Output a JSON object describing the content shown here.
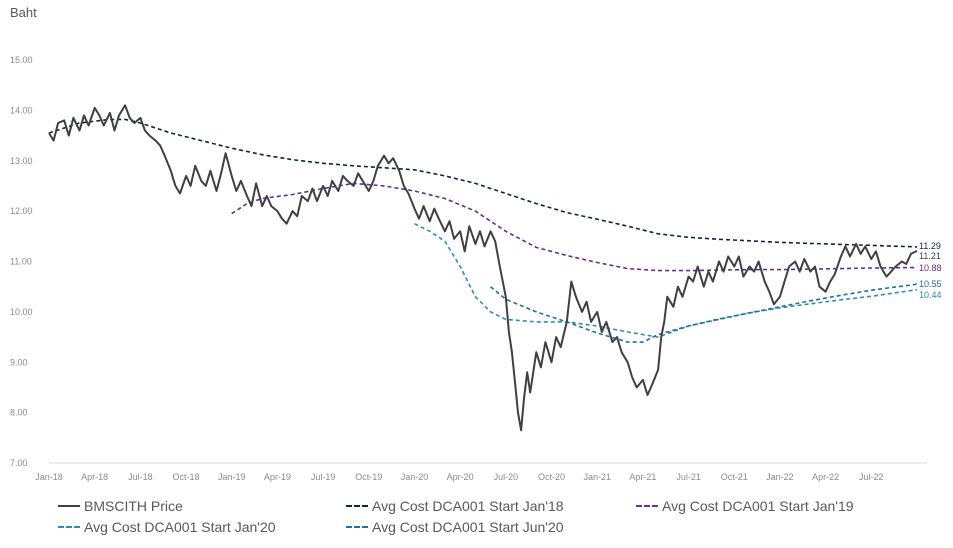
{
  "chart_data": {
    "type": "line",
    "ylabel": "Baht",
    "ylim": [
      7.0,
      15.0
    ],
    "y_ticks": [
      "15.00",
      "14.00",
      "13.00",
      "12.00",
      "11.00",
      "10.00",
      "9.00",
      "8.00",
      "7.00"
    ],
    "x_ticks": [
      "Jan-18",
      "Apr-18",
      "Jul-18",
      "Oct-18",
      "Jan-19",
      "Apr-19",
      "Jul-19",
      "Oct-19",
      "Jan-20",
      "Apr-20",
      "Jul-20",
      "Oct-20",
      "Jan-21",
      "Apr-21",
      "Jul-21",
      "Oct-21",
      "Jan-22",
      "Apr-22",
      "Jul-22"
    ],
    "x_range_months": [
      0,
      57
    ],
    "series": [
      {
        "name": "BMSCITH Price",
        "color": "#404040",
        "dash": "solid",
        "end_label": "11.21",
        "points": [
          [
            0,
            13.55
          ],
          [
            0.3,
            13.4
          ],
          [
            0.6,
            13.75
          ],
          [
            1,
            13.8
          ],
          [
            1.3,
            13.5
          ],
          [
            1.6,
            13.85
          ],
          [
            2,
            13.6
          ],
          [
            2.3,
            13.9
          ],
          [
            2.6,
            13.7
          ],
          [
            3,
            14.05
          ],
          [
            3.3,
            13.9
          ],
          [
            3.6,
            13.7
          ],
          [
            4,
            13.95
          ],
          [
            4.3,
            13.6
          ],
          [
            4.6,
            13.9
          ],
          [
            5,
            14.1
          ],
          [
            5.3,
            13.85
          ],
          [
            5.6,
            13.75
          ],
          [
            6,
            13.85
          ],
          [
            6.3,
            13.6
          ],
          [
            6.6,
            13.5
          ],
          [
            7,
            13.4
          ],
          [
            7.3,
            13.3
          ],
          [
            7.6,
            13.1
          ],
          [
            8,
            12.8
          ],
          [
            8.3,
            12.5
          ],
          [
            8.6,
            12.35
          ],
          [
            9,
            12.7
          ],
          [
            9.3,
            12.5
          ],
          [
            9.6,
            12.9
          ],
          [
            10,
            12.6
          ],
          [
            10.3,
            12.5
          ],
          [
            10.6,
            12.8
          ],
          [
            11,
            12.4
          ],
          [
            11.3,
            12.75
          ],
          [
            11.6,
            13.15
          ],
          [
            12,
            12.7
          ],
          [
            12.3,
            12.4
          ],
          [
            12.6,
            12.6
          ],
          [
            13,
            12.3
          ],
          [
            13.3,
            12.1
          ],
          [
            13.6,
            12.55
          ],
          [
            14,
            12.1
          ],
          [
            14.3,
            12.3
          ],
          [
            14.6,
            12.1
          ],
          [
            15,
            12.0
          ],
          [
            15.3,
            11.85
          ],
          [
            15.6,
            11.75
          ],
          [
            16,
            12.0
          ],
          [
            16.3,
            11.9
          ],
          [
            16.6,
            12.3
          ],
          [
            17,
            12.2
          ],
          [
            17.3,
            12.45
          ],
          [
            17.6,
            12.2
          ],
          [
            18,
            12.5
          ],
          [
            18.3,
            12.3
          ],
          [
            18.6,
            12.6
          ],
          [
            19,
            12.4
          ],
          [
            19.3,
            12.7
          ],
          [
            19.6,
            12.6
          ],
          [
            20,
            12.5
          ],
          [
            20.3,
            12.75
          ],
          [
            20.6,
            12.6
          ],
          [
            21,
            12.4
          ],
          [
            21.3,
            12.6
          ],
          [
            21.6,
            12.9
          ],
          [
            22,
            13.1
          ],
          [
            22.3,
            12.95
          ],
          [
            22.6,
            13.05
          ],
          [
            23,
            12.8
          ],
          [
            23.3,
            12.5
          ],
          [
            23.6,
            12.35
          ],
          [
            24,
            12.05
          ],
          [
            24.3,
            11.85
          ],
          [
            24.6,
            12.1
          ],
          [
            25,
            11.8
          ],
          [
            25.3,
            12.05
          ],
          [
            25.6,
            11.85
          ],
          [
            26,
            11.6
          ],
          [
            26.3,
            11.8
          ],
          [
            26.6,
            11.45
          ],
          [
            27,
            11.6
          ],
          [
            27.3,
            11.2
          ],
          [
            27.6,
            11.7
          ],
          [
            28,
            11.35
          ],
          [
            28.3,
            11.6
          ],
          [
            28.6,
            11.3
          ],
          [
            29,
            11.6
          ],
          [
            29.3,
            11.4
          ],
          [
            29.6,
            10.9
          ],
          [
            30,
            10.3
          ],
          [
            30.2,
            9.6
          ],
          [
            30.4,
            9.2
          ],
          [
            30.6,
            8.6
          ],
          [
            30.8,
            8.0
          ],
          [
            31,
            7.65
          ],
          [
            31.2,
            8.3
          ],
          [
            31.4,
            8.8
          ],
          [
            31.6,
            8.4
          ],
          [
            32,
            9.2
          ],
          [
            32.3,
            8.9
          ],
          [
            32.6,
            9.4
          ],
          [
            33,
            9.0
          ],
          [
            33.3,
            9.5
          ],
          [
            33.6,
            9.3
          ],
          [
            34,
            9.8
          ],
          [
            34.3,
            10.6
          ],
          [
            34.6,
            10.3
          ],
          [
            35,
            10.0
          ],
          [
            35.3,
            10.2
          ],
          [
            35.6,
            9.8
          ],
          [
            36,
            10.0
          ],
          [
            36.3,
            9.6
          ],
          [
            36.6,
            9.8
          ],
          [
            37,
            9.4
          ],
          [
            37.3,
            9.5
          ],
          [
            37.6,
            9.2
          ],
          [
            38,
            9.0
          ],
          [
            38.3,
            8.7
          ],
          [
            38.6,
            8.5
          ],
          [
            39,
            8.65
          ],
          [
            39.3,
            8.35
          ],
          [
            39.6,
            8.55
          ],
          [
            40,
            8.85
          ],
          [
            40.2,
            9.5
          ],
          [
            40.4,
            9.8
          ],
          [
            40.6,
            10.3
          ],
          [
            41,
            10.1
          ],
          [
            41.3,
            10.5
          ],
          [
            41.6,
            10.3
          ],
          [
            42,
            10.7
          ],
          [
            42.3,
            10.6
          ],
          [
            42.6,
            10.9
          ],
          [
            43,
            10.5
          ],
          [
            43.3,
            10.8
          ],
          [
            43.6,
            10.6
          ],
          [
            44,
            11.0
          ],
          [
            44.3,
            10.8
          ],
          [
            44.6,
            11.1
          ],
          [
            45,
            10.9
          ],
          [
            45.3,
            11.1
          ],
          [
            45.6,
            10.7
          ],
          [
            46,
            10.9
          ],
          [
            46.3,
            10.8
          ],
          [
            46.6,
            11.0
          ],
          [
            47,
            10.6
          ],
          [
            47.3,
            10.4
          ],
          [
            47.6,
            10.15
          ],
          [
            48,
            10.3
          ],
          [
            48.3,
            10.6
          ],
          [
            48.6,
            10.9
          ],
          [
            49,
            11.0
          ],
          [
            49.3,
            10.8
          ],
          [
            49.6,
            11.05
          ],
          [
            50,
            10.8
          ],
          [
            50.3,
            10.9
          ],
          [
            50.6,
            10.5
          ],
          [
            51,
            10.4
          ],
          [
            51.3,
            10.6
          ],
          [
            51.6,
            10.75
          ],
          [
            52,
            11.1
          ],
          [
            52.3,
            11.3
          ],
          [
            52.6,
            11.1
          ],
          [
            53,
            11.35
          ],
          [
            53.3,
            11.15
          ],
          [
            53.6,
            11.3
          ],
          [
            54,
            11.05
          ],
          [
            54.3,
            11.2
          ],
          [
            54.6,
            10.9
          ],
          [
            55,
            10.7
          ],
          [
            55.3,
            10.8
          ],
          [
            55.6,
            10.9
          ],
          [
            56,
            11.0
          ],
          [
            56.3,
            10.95
          ],
          [
            56.6,
            11.15
          ],
          [
            57,
            11.21
          ]
        ]
      },
      {
        "name": "Avg Cost DCA001 Start Jan'18",
        "color": "#0b2747",
        "dash": "dashed",
        "end_label": "11.29",
        "points": [
          [
            0,
            13.55
          ],
          [
            2,
            13.75
          ],
          [
            4,
            13.82
          ],
          [
            5,
            13.82
          ],
          [
            6,
            13.75
          ],
          [
            8,
            13.55
          ],
          [
            10,
            13.4
          ],
          [
            12,
            13.25
          ],
          [
            14,
            13.12
          ],
          [
            16,
            13.02
          ],
          [
            18,
            12.95
          ],
          [
            20,
            12.9
          ],
          [
            22,
            12.86
          ],
          [
            24,
            12.82
          ],
          [
            26,
            12.7
          ],
          [
            28,
            12.55
          ],
          [
            30,
            12.35
          ],
          [
            32,
            12.15
          ],
          [
            34,
            11.97
          ],
          [
            36,
            11.84
          ],
          [
            38,
            11.7
          ],
          [
            40,
            11.55
          ],
          [
            42,
            11.48
          ],
          [
            44,
            11.44
          ],
          [
            46,
            11.41
          ],
          [
            48,
            11.38
          ],
          [
            50,
            11.36
          ],
          [
            52,
            11.34
          ],
          [
            54,
            11.32
          ],
          [
            57,
            11.29
          ]
        ]
      },
      {
        "name": "Avg Cost DCA001 Start Jan'19",
        "color": "#6a2c91",
        "dash": "dashed",
        "end_label": "10.88",
        "points": [
          [
            12,
            11.95
          ],
          [
            13,
            12.15
          ],
          [
            14,
            12.25
          ],
          [
            16,
            12.33
          ],
          [
            18,
            12.45
          ],
          [
            20,
            12.55
          ],
          [
            22,
            12.5
          ],
          [
            24,
            12.4
          ],
          [
            26,
            12.25
          ],
          [
            28,
            12.0
          ],
          [
            30,
            11.6
          ],
          [
            32,
            11.28
          ],
          [
            34,
            11.12
          ],
          [
            36,
            10.98
          ],
          [
            38,
            10.86
          ],
          [
            40,
            10.82
          ],
          [
            42,
            10.82
          ],
          [
            44,
            10.83
          ],
          [
            46,
            10.84
          ],
          [
            48,
            10.84
          ],
          [
            50,
            10.85
          ],
          [
            52,
            10.86
          ],
          [
            54,
            10.87
          ],
          [
            57,
            10.88
          ]
        ]
      },
      {
        "name": "Avg Cost DCA001 Start Jan'20",
        "color": "#2e8fb0",
        "dash": "dashed",
        "end_label": "10.44",
        "points": [
          [
            24,
            11.75
          ],
          [
            25,
            11.6
          ],
          [
            26,
            11.4
          ],
          [
            27,
            10.9
          ],
          [
            28,
            10.3
          ],
          [
            29,
            10.0
          ],
          [
            30,
            9.85
          ],
          [
            32,
            9.8
          ],
          [
            34,
            9.8
          ],
          [
            36,
            9.72
          ],
          [
            38,
            9.6
          ],
          [
            40,
            9.5
          ],
          [
            42,
            9.72
          ],
          [
            44,
            9.85
          ],
          [
            46,
            9.98
          ],
          [
            48,
            10.08
          ],
          [
            50,
            10.16
          ],
          [
            52,
            10.24
          ],
          [
            54,
            10.31
          ],
          [
            57,
            10.44
          ]
        ]
      },
      {
        "name": "Avg Cost DCA001 Start Jun'20",
        "color": "#1f6fa8",
        "dash": "dashed",
        "end_label": "10.55",
        "points": [
          [
            29,
            10.5
          ],
          [
            30,
            10.25
          ],
          [
            32,
            10.0
          ],
          [
            34,
            9.8
          ],
          [
            36,
            9.58
          ],
          [
            38,
            9.4
          ],
          [
            39,
            9.4
          ],
          [
            40,
            9.55
          ],
          [
            42,
            9.72
          ],
          [
            44,
            9.86
          ],
          [
            46,
            9.98
          ],
          [
            48,
            10.1
          ],
          [
            50,
            10.22
          ],
          [
            52,
            10.33
          ],
          [
            54,
            10.43
          ],
          [
            57,
            10.55
          ]
        ]
      }
    ]
  }
}
